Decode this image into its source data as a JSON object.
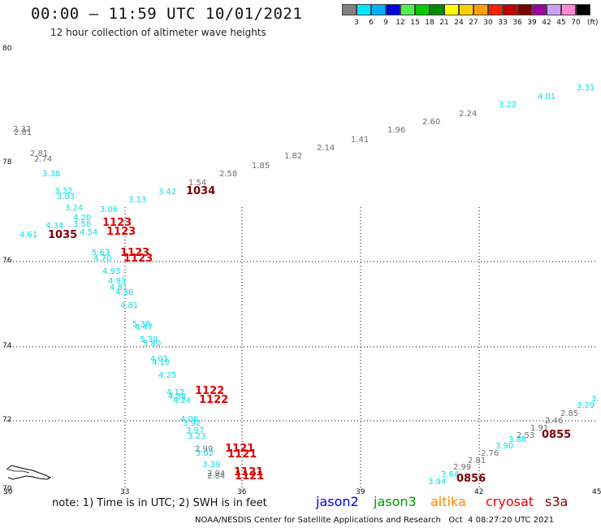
{
  "header": {
    "title": "00:00 — 11:59 UTC 10/01/2021",
    "subtitle": "12 hour collection of altimeter wave heights"
  },
  "colorbar": {
    "labels": [
      "3",
      "6",
      "9",
      "12",
      "15",
      "18",
      "21",
      "24",
      "27",
      "30",
      "33",
      "36",
      "39",
      "42",
      "45",
      "70"
    ],
    "unit": "(ft)",
    "colors": [
      "#808080",
      "#00e5ff",
      "#00b0ff",
      "#0000e0",
      "#55ee55",
      "#00cc00",
      "#008800",
      "#ffff00",
      "#ffd000",
      "#ffa000",
      "#ff2000",
      "#c00000",
      "#7a0000",
      "#a000a0",
      "#c8a0ff",
      "#ff8ad8",
      "#000000"
    ]
  },
  "map": {
    "lat_labels": [
      "80",
      "78",
      "76",
      "74",
      "72",
      "70"
    ],
    "lon_labels": [
      "30",
      "33",
      "36",
      "39",
      "42",
      "45"
    ],
    "colors": {
      "gray": "#6e6e6e",
      "cyan": "#00e0e8",
      "red": "#e00000",
      "darkred": "#800000"
    },
    "points": [
      {
        "text": "2.32",
        "c": "gray"
      },
      {
        "text": "2.81",
        "c": "gray"
      },
      {
        "text": "2.81",
        "c": "gray"
      },
      {
        "text": "2.74",
        "c": "gray"
      },
      {
        "text": "3.38",
        "c": "cyan"
      },
      {
        "text": "3.32",
        "c": "cyan"
      },
      {
        "text": "3.03",
        "c": "cyan"
      },
      {
        "text": "3.24",
        "c": "cyan"
      },
      {
        "text": "4.20",
        "c": "cyan"
      },
      {
        "text": "3.58",
        "c": "cyan"
      },
      {
        "text": "4.34",
        "c": "cyan"
      },
      {
        "text": "4.54",
        "c": "cyan"
      },
      {
        "text": "4.61",
        "c": "cyan"
      },
      {
        "text": "1035",
        "c": "darkred"
      },
      {
        "text": "3.06",
        "c": "cyan"
      },
      {
        "text": "3.13",
        "c": "cyan"
      },
      {
        "text": "3.42",
        "c": "cyan"
      },
      {
        "text": "1.54",
        "c": "gray"
      },
      {
        "text": "1034",
        "c": "darkred"
      },
      {
        "text": "2.58",
        "c": "gray"
      },
      {
        "text": "1.85",
        "c": "gray"
      },
      {
        "text": "1.82",
        "c": "gray"
      },
      {
        "text": "2.14",
        "c": "gray"
      },
      {
        "text": "1.41",
        "c": "gray"
      },
      {
        "text": "1.96",
        "c": "gray"
      },
      {
        "text": "2.60",
        "c": "gray"
      },
      {
        "text": "2.24",
        "c": "gray"
      },
      {
        "text": "3.22",
        "c": "cyan"
      },
      {
        "text": "4.01",
        "c": "cyan"
      },
      {
        "text": "3.31",
        "c": "cyan"
      },
      {
        "text": "1123",
        "c": "red"
      },
      {
        "text": "1123",
        "c": "red"
      },
      {
        "text": "5.63",
        "c": "cyan"
      },
      {
        "text": "4.70",
        "c": "cyan"
      },
      {
        "text": "1123",
        "c": "red"
      },
      {
        "text": "1123",
        "c": "red"
      },
      {
        "text": "4.93",
        "c": "cyan"
      },
      {
        "text": "4.93",
        "c": "cyan"
      },
      {
        "text": "4.81",
        "c": "cyan"
      },
      {
        "text": "4.36",
        "c": "cyan"
      },
      {
        "text": "4.81",
        "c": "cyan"
      },
      {
        "text": "5.38",
        "c": "cyan"
      },
      {
        "text": "4.47",
        "c": "cyan"
      },
      {
        "text": "5.39",
        "c": "cyan"
      },
      {
        "text": "5.80",
        "c": "cyan"
      },
      {
        "text": "4.01",
        "c": "cyan"
      },
      {
        "text": "4.10",
        "c": "cyan"
      },
      {
        "text": "4.25",
        "c": "cyan"
      },
      {
        "text": "4.12",
        "c": "cyan"
      },
      {
        "text": "1122",
        "c": "red"
      },
      {
        "text": "4.38",
        "c": "cyan"
      },
      {
        "text": "4.24",
        "c": "cyan"
      },
      {
        "text": "1122",
        "c": "red"
      },
      {
        "text": "4.06",
        "c": "cyan"
      },
      {
        "text": "3.92",
        "c": "cyan"
      },
      {
        "text": "3.97",
        "c": "cyan"
      },
      {
        "text": "3.23",
        "c": "cyan"
      },
      {
        "text": "2.99",
        "c": "gray"
      },
      {
        "text": "3.02",
        "c": "cyan"
      },
      {
        "text": "1121",
        "c": "red"
      },
      {
        "text": "1121",
        "c": "red"
      },
      {
        "text": "3.39",
        "c": "cyan"
      },
      {
        "text": "2.94",
        "c": "gray"
      },
      {
        "text": "2.84",
        "c": "gray"
      },
      {
        "text": "1121",
        "c": "red"
      },
      {
        "text": "1121",
        "c": "red"
      },
      {
        "text": "3.94",
        "c": "cyan"
      },
      {
        "text": "3.64",
        "c": "cyan"
      },
      {
        "text": "2.99",
        "c": "gray"
      },
      {
        "text": "0856",
        "c": "darkred"
      },
      {
        "text": "2.81",
        "c": "gray"
      },
      {
        "text": "2.76",
        "c": "gray"
      },
      {
        "text": "3.90",
        "c": "cyan"
      },
      {
        "text": "3.88",
        "c": "cyan"
      },
      {
        "text": "2.53",
        "c": "gray"
      },
      {
        "text": "1.91",
        "c": "gray"
      },
      {
        "text": "2.46",
        "c": "gray"
      },
      {
        "text": "0855",
        "c": "darkred"
      },
      {
        "text": "2.85",
        "c": "gray"
      },
      {
        "text": "3.29",
        "c": "cyan"
      },
      {
        "text": "3.",
        "c": "cyan"
      }
    ]
  },
  "note": "note:  1) Time is in UTC;  2) SWH is in feet",
  "satellites": [
    {
      "name": "jason2",
      "color": "#0000dd"
    },
    {
      "name": "jason3",
      "color": "#009900"
    },
    {
      "name": "altika",
      "color": "#ff8800"
    },
    {
      "name": "cryosat",
      "color": "#ee0000"
    },
    {
      "name": "s3a",
      "color": "#990000"
    }
  ],
  "footer": "NOAA/NESDIS Center for Satellite Applications and Research   Oct  4 08:27:20 UTC 2021"
}
